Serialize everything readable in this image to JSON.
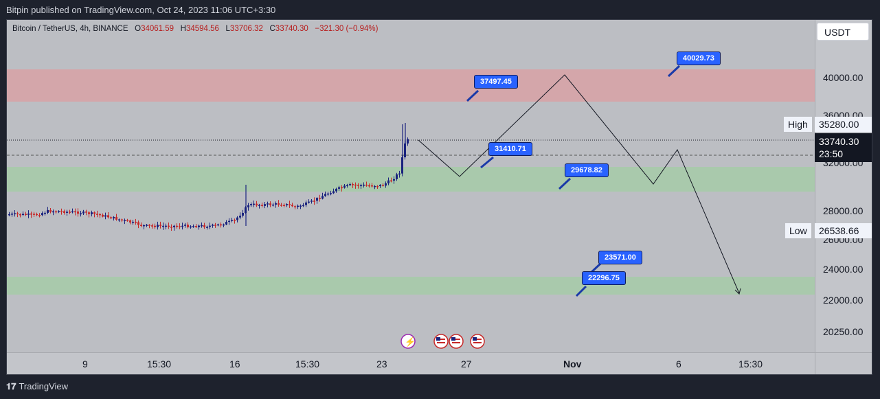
{
  "header": {
    "publish_text": "Bitpin published on TradingView.com, Oct 24, 2023 11:06 UTC+3:30"
  },
  "legend": {
    "symbol": "Bitcoin / TetherUS, 4h, BINANCE",
    "open_label": "O",
    "open": "34061.59",
    "high_label": "H",
    "high": "34594.56",
    "low_label": "L",
    "low": "33706.32",
    "close_label": "C",
    "close": "33740.30",
    "change": "−321.30 (−0.94%)"
  },
  "currency_button": "USDT",
  "price_ticks": [
    "40000.00",
    "36000.00",
    "32000.00",
    "28000.00",
    "26000.00",
    "24000.00",
    "22000.00",
    "20250.00"
  ],
  "high_marker": {
    "label": "High",
    "value": "35280.00"
  },
  "low_marker": {
    "label": "Low",
    "value": "26538.66"
  },
  "last_price": {
    "value": "33740.30",
    "countdown": "23:50"
  },
  "time_ticks": [
    "9",
    "15:30",
    "16",
    "15:30",
    "23",
    "27",
    "Nov",
    "6",
    "15:30"
  ],
  "callouts": [
    "40029.73",
    "37497.45",
    "31410.71",
    "29678.82",
    "23571.00",
    "22296.75"
  ],
  "footer": {
    "brand": "TradingView"
  },
  "colors": {
    "resistance_zone": "#e8a7ab",
    "support_zone": "#a5d4a9",
    "up_candle": "#1a237e",
    "down_candle": "#c62828",
    "callout": "#2962ff",
    "last_price_bg": "#131722"
  }
}
